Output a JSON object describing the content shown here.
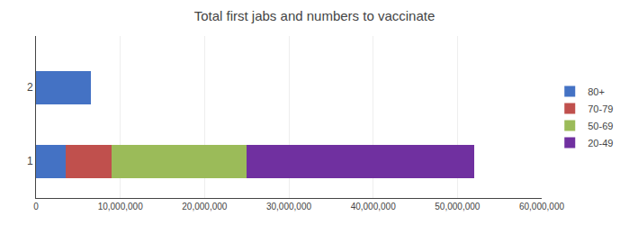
{
  "chart_data": {
    "type": "bar",
    "orientation": "horizontal",
    "stacked": true,
    "title": "Total first jabs and numbers to vaccinate",
    "categories": [
      1,
      2
    ],
    "series": [
      {
        "name": "80+",
        "color": "#4472C4",
        "values": [
          3500000,
          6500000
        ]
      },
      {
        "name": "70-79",
        "color": "#C0504D",
        "values": [
          5500000,
          0
        ]
      },
      {
        "name": "50-69",
        "color": "#9BBB59",
        "values": [
          16000000,
          0
        ]
      },
      {
        "name": "20-49",
        "color": "#7030A0",
        "values": [
          27000000,
          0
        ]
      }
    ],
    "xlim": [
      0,
      60000000
    ],
    "xticks": [
      0,
      {
        "value": 10000000,
        "label": "10,000,000"
      },
      {
        "value": 20000000,
        "label": "20,000,000"
      },
      {
        "value": 30000000,
        "label": "30,000,000"
      },
      {
        "value": 40000000,
        "label": "40,000,000"
      },
      {
        "value": 50000000,
        "label": "50,000,000"
      },
      {
        "value": 60000000,
        "label": "60,000,000"
      }
    ],
    "ylim": [
      0.5,
      2.7
    ],
    "yticks": [
      1,
      2
    ],
    "grid": "x",
    "legend": "right"
  }
}
